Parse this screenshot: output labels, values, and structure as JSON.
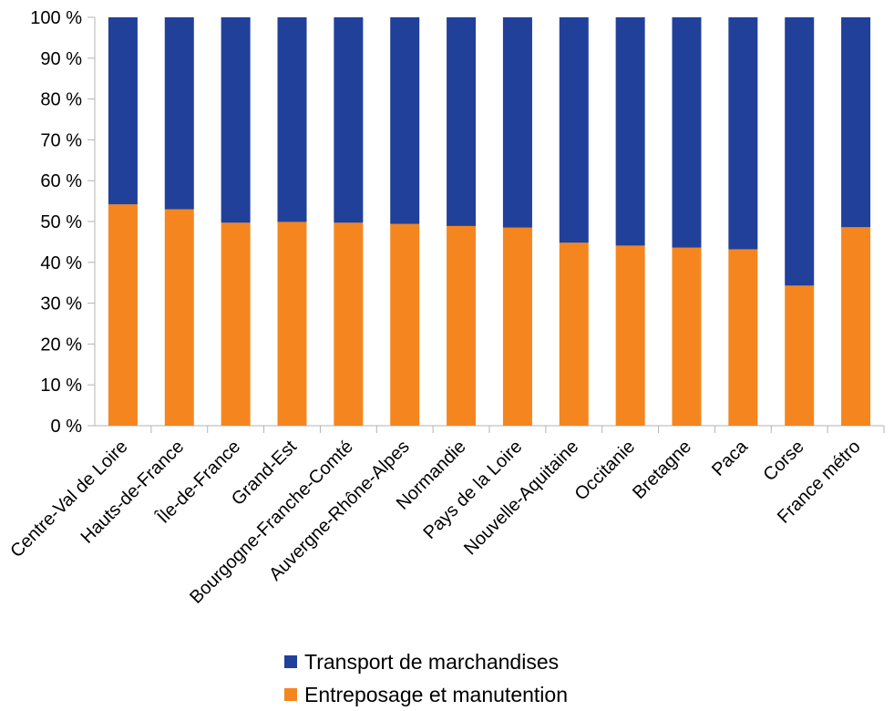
{
  "chart_data": {
    "type": "bar",
    "stacked": true,
    "percent": true,
    "categories": [
      "Centre-Val de Loire",
      "Hauts-de-France",
      "Île-de-France",
      "Grand-Est",
      "Bourgogne-Franche-Comté",
      "Auvergne-Rhône-Alpes",
      "Normandie",
      "Pays de la Loire",
      "Nouvelle-Aquitaine",
      "Occitanie",
      "Bretagne",
      "Paca",
      "Corse",
      "France métro"
    ],
    "series": [
      {
        "name": "Entreposage et manutention",
        "color": "#f5861f",
        "values": [
          54.2,
          53.0,
          49.7,
          49.9,
          49.7,
          49.4,
          48.9,
          48.5,
          44.8,
          44.1,
          43.6,
          43.2,
          34.3,
          48.6
        ]
      },
      {
        "name": "Transport de marchandises",
        "color": "#21409a",
        "values": [
          45.8,
          47.0,
          50.3,
          50.1,
          50.3,
          50.6,
          51.1,
          51.5,
          55.2,
          55.9,
          56.4,
          56.8,
          65.7,
          51.4
        ]
      }
    ],
    "legend_order": [
      1,
      0
    ],
    "yticks": [
      "0 %",
      "10 %",
      "20 %",
      "30 %",
      "40 %",
      "50 %",
      "60 %",
      "70 %",
      "80 %",
      "90 %",
      "100 %"
    ],
    "ylim": [
      0,
      100
    ],
    "grid": false,
    "legend_position": "bottom"
  }
}
